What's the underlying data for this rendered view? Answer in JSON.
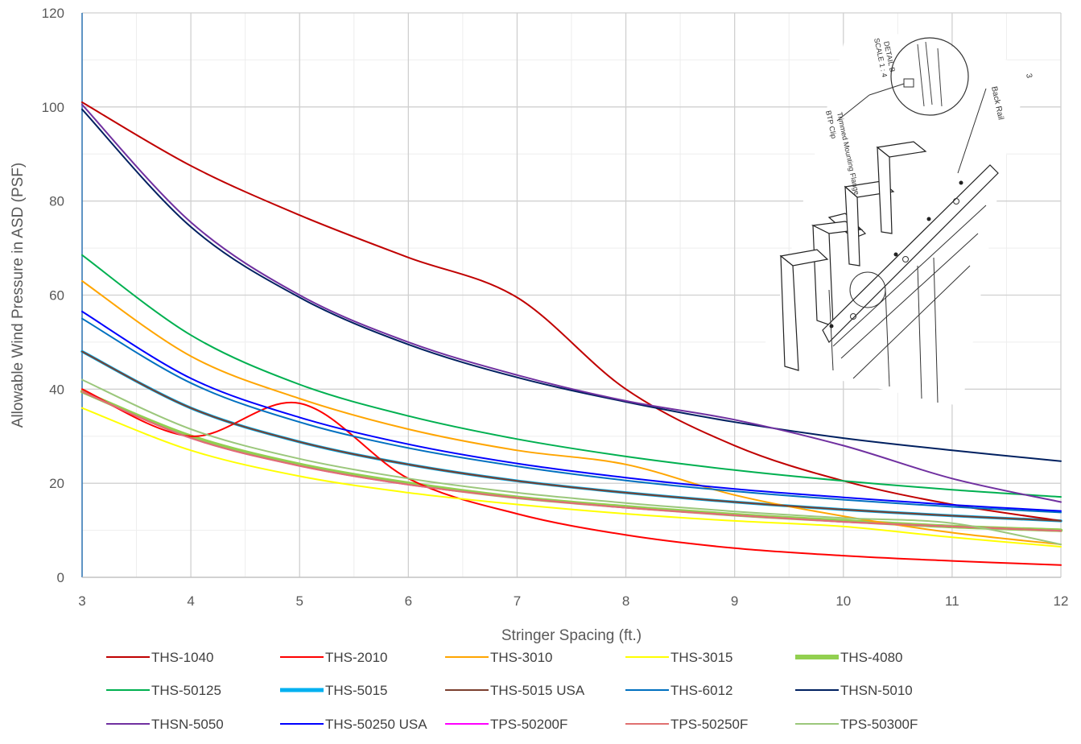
{
  "chart_data": {
    "type": "line",
    "title": "",
    "xlabel": "Stringer Spacing (ft.)",
    "ylabel": "Allowable Wind Pressure in ASD (PSF)",
    "xlim": [
      3,
      12
    ],
    "ylim": [
      0,
      120
    ],
    "x_ticks": [
      "3",
      "4",
      "5",
      "6",
      "7",
      "8",
      "9",
      "10",
      "11",
      "12"
    ],
    "y_ticks": [
      "0",
      "20",
      "40",
      "60",
      "80",
      "100",
      "120"
    ],
    "grid": true,
    "legend_position": "bottom",
    "x": [
      3,
      4,
      5,
      6,
      7,
      8,
      9,
      10,
      11,
      12
    ],
    "series": [
      {
        "name": "THS-1040",
        "color": "#C00000",
        "values": [
          101,
          87.5,
          77,
          68,
          59.5,
          40,
          28,
          20.5,
          15.5,
          12
        ]
      },
      {
        "name": "THS-2010",
        "color": "#FF0000",
        "values": [
          40,
          30,
          37,
          21,
          13.5,
          9,
          6.2,
          4.6,
          3.5,
          2.6
        ]
      },
      {
        "name": "THS-3010",
        "color": "#FFA500",
        "values": [
          63,
          47,
          38,
          31.5,
          27,
          24,
          17.5,
          13,
          9.5,
          7
        ]
      },
      {
        "name": "THS-3015",
        "color": "#FFFF00",
        "values": [
          36,
          27,
          21.5,
          18,
          15.5,
          13.5,
          12,
          10.8,
          8.5,
          6.5
        ]
      },
      {
        "name": "THS-4080",
        "color": "#92D050",
        "values": [
          39.5,
          30,
          24,
          20,
          17,
          15,
          13.3,
          12,
          10.8,
          10
        ]
      },
      {
        "name": "THS-50125",
        "color": "#00B050",
        "values": [
          68.5,
          51.5,
          41,
          34.3,
          29.4,
          25.7,
          22.8,
          20.5,
          18.6,
          17.1
        ]
      },
      {
        "name": "THS-5015",
        "color": "#00B0F0",
        "values": [
          48,
          36,
          28.8,
          24,
          20.5,
          18,
          16,
          14.4,
          13.1,
          12
        ]
      },
      {
        "name": "THS-5015 USA",
        "color": "#7B3F2E",
        "values": [
          48,
          36,
          28.8,
          24,
          20.5,
          18,
          16,
          14.4,
          13.1,
          12
        ]
      },
      {
        "name": "THS-6012",
        "color": "#0070C0",
        "values": [
          55,
          41.3,
          33,
          27.5,
          23.6,
          20.6,
          18.3,
          16.5,
          15,
          13.8
        ]
      },
      {
        "name": "THSN-5010",
        "color": "#002060",
        "values": [
          99.5,
          74.5,
          59.5,
          49.5,
          42.5,
          37.3,
          33,
          29.6,
          27,
          24.7
        ]
      },
      {
        "name": "THSN-5050",
        "color": "#7030A0",
        "values": [
          100.5,
          75.5,
          60,
          50,
          43,
          37.5,
          33.5,
          28,
          21,
          16
        ]
      },
      {
        "name": "THS-50250 USA",
        "color": "#0000FF",
        "values": [
          56.5,
          42.3,
          34,
          28.3,
          24.2,
          21.2,
          18.8,
          17,
          15.4,
          14.1
        ]
      },
      {
        "name": "TPS-50200F",
        "color": "#FF00FF",
        "values": [
          39.5,
          29.6,
          23.7,
          19.7,
          16.9,
          14.8,
          13.2,
          11.8,
          10.8,
          9.9
        ]
      },
      {
        "name": "TPS-50250F",
        "color": "#E07070",
        "values": [
          39.5,
          29.6,
          23.7,
          19.7,
          16.9,
          14.8,
          13.2,
          11.8,
          10.8,
          9.9
        ]
      },
      {
        "name": "TPS-50300F",
        "color": "#9BC77B",
        "values": [
          42,
          31.5,
          25.2,
          21,
          18,
          15.8,
          14,
          12.6,
          11.5,
          7
        ]
      }
    ]
  },
  "legend_widths": {
    "THS-4080": 6,
    "THS-5015": 5
  },
  "inset": {
    "detail_label": "DETAIL B",
    "scale_label": "SCALE 1 : 4",
    "part_number": "3",
    "callout_back_rail": "Back Rail",
    "callout_flange": "Trimmed Mounting Flange",
    "callout_clip": "BTP Clip"
  }
}
